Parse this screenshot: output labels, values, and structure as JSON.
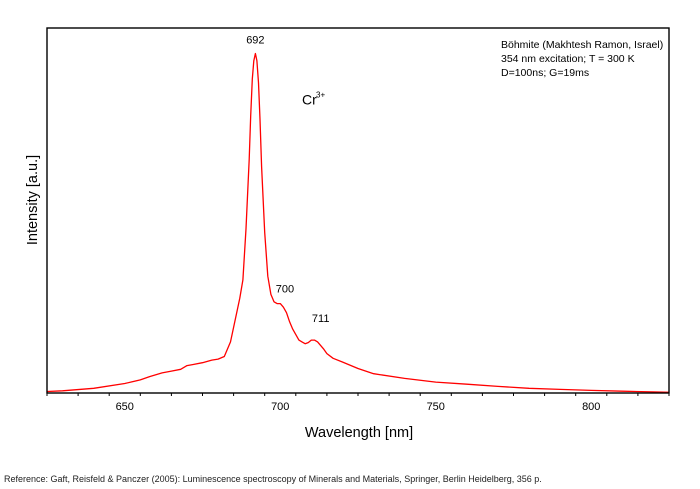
{
  "chart_data": {
    "type": "line",
    "xlabel": "Wavelength [nm]",
    "ylabel": "Intensity [a.u.]",
    "xlim": [
      625,
      825
    ],
    "ylim": [
      0,
      1.0
    ],
    "x_ticks": [
      650,
      700,
      750,
      800
    ],
    "grid": false,
    "series_color": "#ff0000",
    "info_lines": [
      "Böhmite (Makhtesh Ramon, Israel)",
      "354 nm excitation; T = 300 K",
      "D=100ns; G=19ms"
    ],
    "ion_label": {
      "text": "Cr",
      "superscript": "3+",
      "x": 707,
      "y": 0.79
    },
    "peak_labels": [
      {
        "text": "692",
        "x": 692,
        "y": 0.957
      },
      {
        "text": "700",
        "x": 701.5,
        "y": 0.275
      },
      {
        "text": "711",
        "x": 713,
        "y": 0.195
      }
    ],
    "series": [
      {
        "x": [
          625,
          630,
          640,
          650,
          655,
          658,
          662,
          665,
          668,
          670,
          672,
          675,
          678,
          680,
          682,
          684,
          686,
          687,
          688,
          689,
          690,
          690.5,
          691,
          691.5,
          692,
          692.5,
          693,
          693.5,
          694,
          695,
          696,
          697,
          698,
          699,
          700,
          701,
          702,
          703,
          704,
          705,
          706,
          707,
          708,
          709,
          710,
          711,
          712,
          713,
          714,
          715,
          717,
          720,
          725,
          730,
          740,
          750,
          760,
          770,
          780,
          790,
          800,
          810,
          820,
          825
        ],
        "y": [
          0.004,
          0.006,
          0.013,
          0.026,
          0.036,
          0.045,
          0.055,
          0.06,
          0.065,
          0.075,
          0.078,
          0.083,
          0.09,
          0.093,
          0.1,
          0.14,
          0.22,
          0.26,
          0.31,
          0.45,
          0.64,
          0.76,
          0.86,
          0.91,
          0.93,
          0.91,
          0.85,
          0.75,
          0.62,
          0.44,
          0.32,
          0.27,
          0.25,
          0.245,
          0.245,
          0.235,
          0.22,
          0.195,
          0.175,
          0.16,
          0.145,
          0.14,
          0.135,
          0.138,
          0.145,
          0.145,
          0.14,
          0.13,
          0.12,
          0.108,
          0.095,
          0.085,
          0.067,
          0.053,
          0.04,
          0.03,
          0.024,
          0.018,
          0.013,
          0.01,
          0.007,
          0.005,
          0.003,
          0.002
        ]
      }
    ]
  },
  "reference": "Reference: Gaft, Reisfeld & Panczer (2005): Luminescence spectroscopy of Minerals and Materials, Springer, Berlin Heidelberg, 356 p."
}
